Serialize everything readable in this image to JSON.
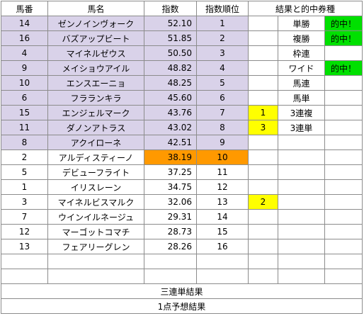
{
  "headers": {
    "num": "馬番",
    "name": "馬名",
    "index": "指数",
    "rank": "指数順位",
    "result": "結果と的中券種"
  },
  "rows": [
    {
      "num": "14",
      "name": "ゼンノインヴォーク",
      "index": "52.10",
      "rank": "1",
      "place": "",
      "ticket": "単勝",
      "hit": "的中！"
    },
    {
      "num": "16",
      "name": "バズアップビート",
      "index": "51.85",
      "rank": "2",
      "place": "",
      "ticket": "複勝",
      "hit": "的中！"
    },
    {
      "num": "4",
      "name": "マイネルゼウス",
      "index": "50.50",
      "rank": "3",
      "place": "",
      "ticket": "枠連",
      "hit": ""
    },
    {
      "num": "9",
      "name": "メイショウアイル",
      "index": "48.82",
      "rank": "4",
      "place": "",
      "ticket": "ワイド",
      "hit": "的中！"
    },
    {
      "num": "10",
      "name": "エンスエーニョ",
      "index": "48.25",
      "rank": "5",
      "place": "",
      "ticket": "馬連",
      "hit": ""
    },
    {
      "num": "6",
      "name": "フラランキラ",
      "index": "45.60",
      "rank": "6",
      "place": "",
      "ticket": "馬単",
      "hit": ""
    },
    {
      "num": "15",
      "name": "エンジェルマーク",
      "index": "43.76",
      "rank": "7",
      "place": "1",
      "ticket": "3連複",
      "hit": ""
    },
    {
      "num": "11",
      "name": "ダノンアトラス",
      "index": "43.02",
      "rank": "8",
      "place": "3",
      "ticket": "3連単",
      "hit": ""
    },
    {
      "num": "8",
      "name": "アクイローネ",
      "index": "42.51",
      "rank": "9",
      "place": "",
      "ticket": "",
      "hit": ""
    },
    {
      "num": "2",
      "name": "アルディスティーノ",
      "index": "38.19",
      "rank": "10",
      "place": "",
      "ticket": "",
      "hit": ""
    },
    {
      "num": "5",
      "name": "デビューフライト",
      "index": "37.25",
      "rank": "11",
      "place": "",
      "ticket": "",
      "hit": ""
    },
    {
      "num": "1",
      "name": "イリスレーン",
      "index": "34.75",
      "rank": "12",
      "place": "",
      "ticket": "",
      "hit": ""
    },
    {
      "num": "3",
      "name": "マイネルビスマルク",
      "index": "32.06",
      "rank": "13",
      "place": "2",
      "ticket": "",
      "hit": ""
    },
    {
      "num": "7",
      "name": "ウインイルネージュ",
      "index": "29.31",
      "rank": "14",
      "place": "",
      "ticket": "",
      "hit": ""
    },
    {
      "num": "12",
      "name": "マーゴットコマチ",
      "index": "28.73",
      "rank": "15",
      "place": "",
      "ticket": "",
      "hit": ""
    },
    {
      "num": "13",
      "name": "フェアリーグレン",
      "index": "28.26",
      "rank": "16",
      "place": "",
      "ticket": "",
      "hit": ""
    }
  ],
  "footer": {
    "trifecta_result": "三連単結果",
    "one_point_result": "1点予想結果"
  },
  "colors": {
    "highlight_rows": "#d9d2e9",
    "tenth_place": "#ff9900",
    "finish_place": "#ffff00",
    "hit": "#00e000"
  }
}
